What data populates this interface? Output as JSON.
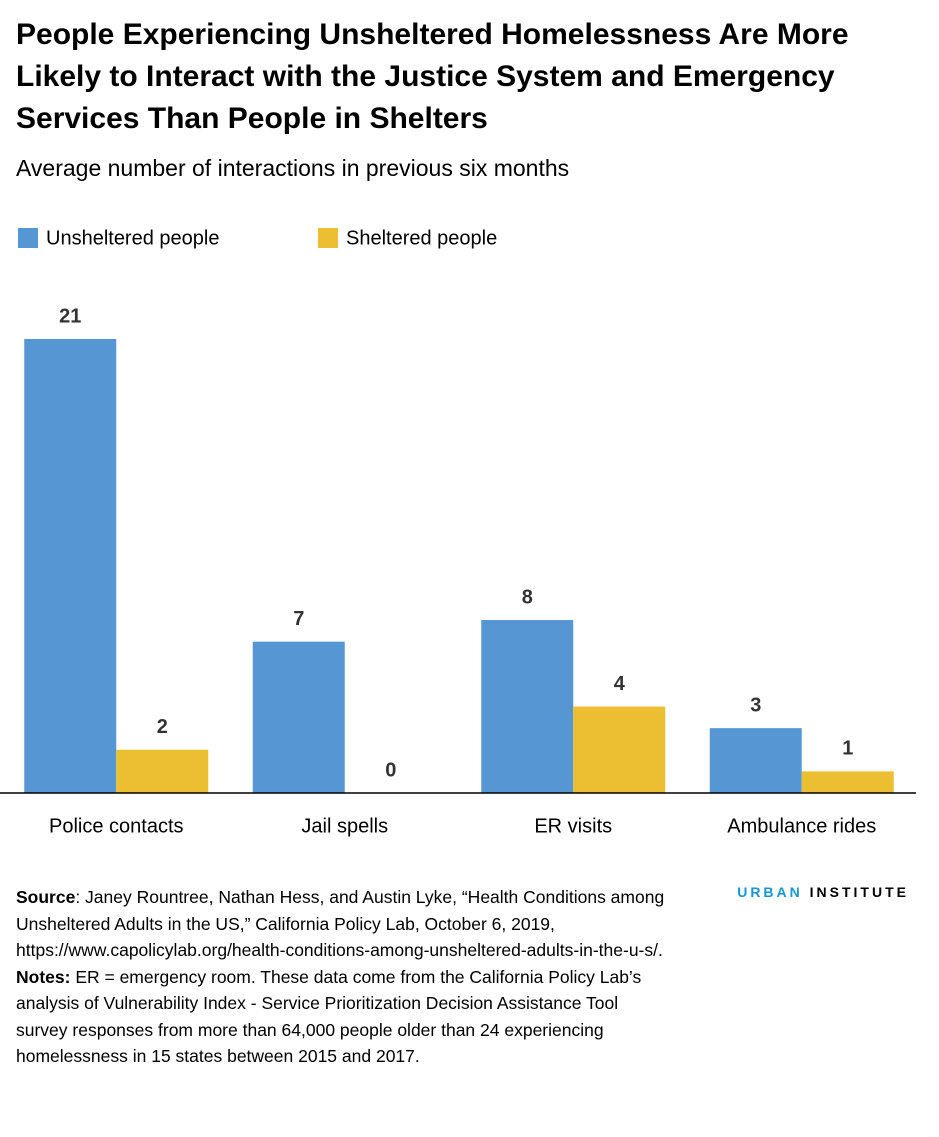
{
  "chart_data": {
    "type": "bar",
    "title": "People Experiencing Unsheltered Homelessness Are More Likely to Interact with the Justice System and Emergency Services Than People in Shelters",
    "subtitle": "Average number of interactions in previous six months",
    "categories": [
      "Police contacts",
      "Jail spells",
      "ER visits",
      "Ambulance rides"
    ],
    "series": [
      {
        "name": "Unsheltered people",
        "color": "#5596d3",
        "values": [
          21,
          7,
          8,
          3
        ]
      },
      {
        "name": "Sheltered people",
        "color": "#ecbf32",
        "values": [
          2,
          0,
          4,
          1
        ]
      }
    ],
    "ylim": [
      0,
      21
    ],
    "grid": false,
    "legend": "top-left"
  },
  "footer": {
    "source_label": "Source",
    "source": ": Janey Rountree, Nathan Hess, and Austin Lyke, “Health Conditions among Unsheltered Adults in the US,” California Policy Lab, October 6, 2019, https://www.capolicylab.org/health-conditions-among-unsheltered-adults-in-the-u-s/.",
    "notes_label": "Notes:",
    "notes": " ER = emergency room. These data come from the California Policy Lab’s analysis of Vulnerability Index - Service Prioritization Decision Assistance Tool survey responses from more than 64,000 people older than 24 experiencing homelessness in 15 states between 2015 and 2017.",
    "brand_first": "URBAN",
    "brand_second": "INSTITUTE"
  }
}
